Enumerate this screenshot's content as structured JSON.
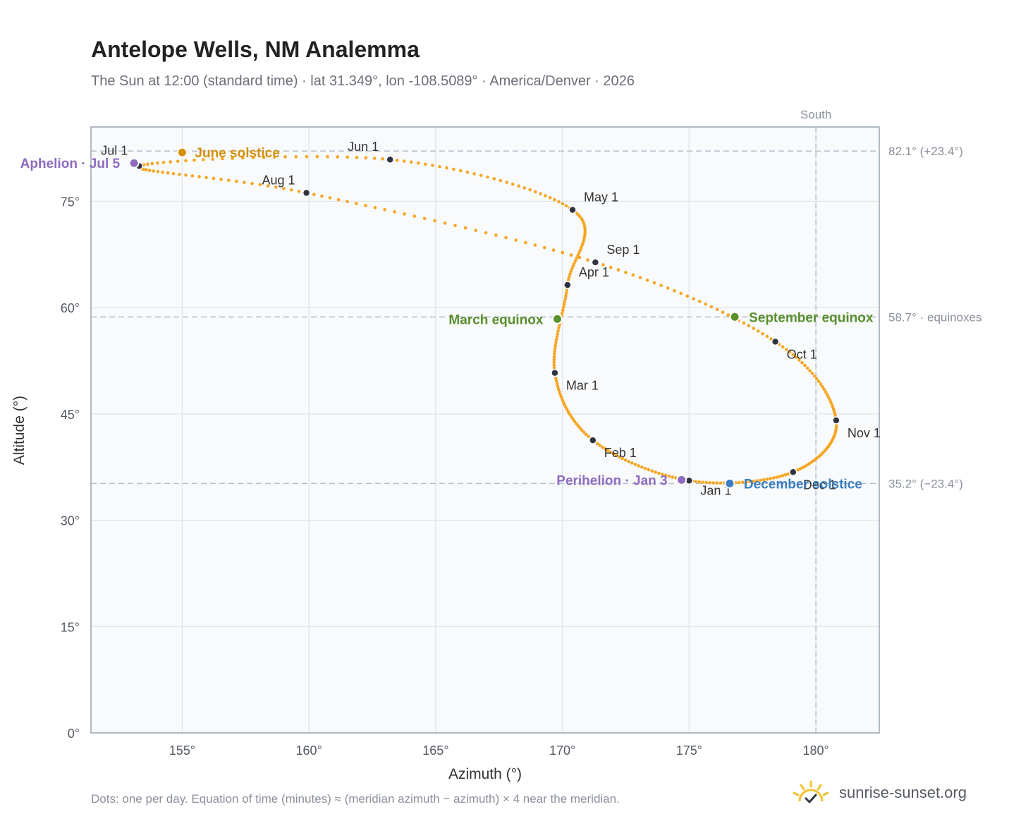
{
  "title": "Antelope Wells, NM Analemma",
  "subtitle": "The Sun at 12:00 (standard time) · lat 31.349°, lon -108.5089° · America/Denver · 2026",
  "footnote": "Dots: one per day. Equation of time (minutes) ≈ (meridian azimuth − azimuth) × 4 near the meridian.",
  "brand": {
    "name": "sunrise-sunset.org",
    "icon": "sun-logo-icon",
    "color": "#f2c12e"
  },
  "colors": {
    "curve": "#f5a623",
    "month_dot": "#2f3440",
    "solstice_june": "#d4900c",
    "solstice_december": "#3a7ebf",
    "equinox": "#5a8f2e",
    "apsis": "#8e6bbf",
    "plot_bg": "#f8fafc",
    "grid": "#e3e7ec",
    "frame": "#9aa4b2",
    "reference_line": "#b7c0cb"
  },
  "chart_data": {
    "type": "scatter",
    "xlabel": "Azimuth (°)",
    "ylabel": "Altitude (°)",
    "xlim": [
      151.4,
      182.5
    ],
    "ylim": [
      0,
      85.5
    ],
    "xticks": [
      155,
      160,
      165,
      170,
      175,
      180
    ],
    "yticks": [
      0,
      15,
      30,
      45,
      60,
      75
    ],
    "x_tick_labels": [
      "155°",
      "160°",
      "165°",
      "170°",
      "175°",
      "180°"
    ],
    "y_tick_labels": [
      "0°",
      "15°",
      "30°",
      "45°",
      "60°",
      "75°"
    ],
    "grid": true,
    "meridian": {
      "label": "South",
      "azimuth": 180
    },
    "reference_lines": [
      {
        "altitude": 82.1,
        "label": "82.1° (+23.4°)"
      },
      {
        "altitude": 58.7,
        "label": "58.7° · equinoxes"
      },
      {
        "altitude": 35.2,
        "label": "35.2° (−23.4°)"
      }
    ],
    "anchors": [
      {
        "label": "Jan 1",
        "day": 1,
        "azimuth": 175.0,
        "altitude": 35.6
      },
      {
        "label": "Feb 1",
        "day": 32,
        "azimuth": 171.2,
        "altitude": 41.3
      },
      {
        "label": "Mar 1",
        "day": 60,
        "azimuth": 169.7,
        "altitude": 50.8
      },
      {
        "label": "Apr 1",
        "day": 91,
        "azimuth": 170.2,
        "altitude": 63.2
      },
      {
        "label": "May 1",
        "day": 121,
        "azimuth": 170.4,
        "altitude": 73.8
      },
      {
        "label": "Jun 1",
        "day": 152,
        "azimuth": 163.2,
        "altitude": 80.9
      },
      {
        "label": "Jul 1",
        "day": 182,
        "azimuth": 153.3,
        "altitude": 80.0
      },
      {
        "label": "Aug 1",
        "day": 213,
        "azimuth": 159.9,
        "altitude": 76.2
      },
      {
        "label": "Sep 1",
        "day": 244,
        "azimuth": 171.3,
        "altitude": 66.4
      },
      {
        "label": "Oct 1",
        "day": 274,
        "azimuth": 178.4,
        "altitude": 55.2
      },
      {
        "label": "Nov 1",
        "day": 305,
        "azimuth": 180.8,
        "altitude": 44.1
      },
      {
        "label": "Dec 1",
        "day": 335,
        "azimuth": 179.1,
        "altitude": 36.8
      },
      {
        "label": "",
        "day": 366,
        "azimuth": 175.0,
        "altitude": 35.6
      }
    ],
    "events": [
      {
        "label": "June solstice",
        "azimuth": 155.0,
        "altitude": 81.9,
        "kind": "solstice_june"
      },
      {
        "label": "December solstice",
        "azimuth": 176.6,
        "altitude": 35.2,
        "kind": "solstice_december"
      },
      {
        "label": "March equinox",
        "azimuth": 169.8,
        "altitude": 58.4,
        "kind": "equinox"
      },
      {
        "label": "September equinox",
        "azimuth": 176.8,
        "altitude": 58.7,
        "kind": "equinox"
      },
      {
        "label": "Aphelion · Jul 5",
        "azimuth": 153.1,
        "altitude": 80.4,
        "kind": "apsis"
      },
      {
        "label": "Perihelion · Jan 3",
        "azimuth": 174.7,
        "altitude": 35.7,
        "kind": "apsis"
      }
    ]
  }
}
